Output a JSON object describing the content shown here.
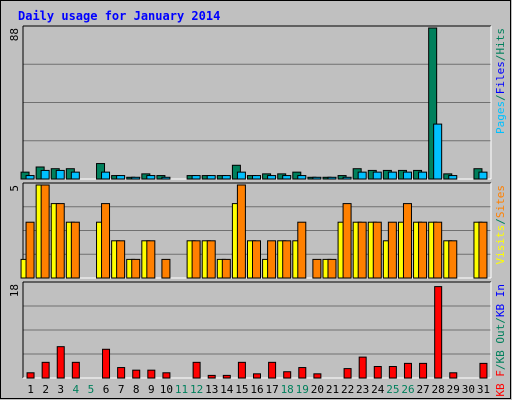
{
  "colors": {
    "background": "#c0c0c0",
    "plot_bg": "#c0c0c0",
    "grid": "#707070",
    "title": "#0000ff",
    "hits": "#00805c",
    "files": "#00c0ff",
    "pages": "#00c0ff",
    "visits": "#ffff00",
    "sites": "#ff8000",
    "kbin": "#0000ff",
    "kbout": "#00805c",
    "kbf": "#ff0000",
    "weekend_label": "#00805c",
    "weekday_label": "#000000",
    "separator": "#00805c"
  },
  "chart_data": {
    "type": "bar",
    "title": "Daily usage for January 2014",
    "categories": [
      "1",
      "2",
      "3",
      "4",
      "5",
      "6",
      "7",
      "8",
      "9",
      "10",
      "11",
      "12",
      "13",
      "14",
      "15",
      "16",
      "17",
      "18",
      "19",
      "20",
      "21",
      "22",
      "23",
      "24",
      "25",
      "26",
      "27",
      "28",
      "29",
      "30",
      "31"
    ],
    "weekend_days": [
      "4",
      "5",
      "11",
      "12",
      "18",
      "19",
      "25",
      "26"
    ],
    "panels": [
      {
        "name": "hits-files-pages",
        "ymax_label": "88",
        "ymax": 88,
        "legend": [
          {
            "text": "Pages",
            "color_key": "pages"
          },
          {
            "text": "/",
            "color_key": "separator"
          },
          {
            "text": "Files",
            "color_key": "kbin"
          },
          {
            "text": "/",
            "color_key": "separator"
          },
          {
            "text": "Hits",
            "color_key": "hits"
          }
        ],
        "series": [
          {
            "name": "Hits",
            "color_key": "hits",
            "values": [
              4,
              7,
              6,
              6,
              0,
              9,
              2,
              1,
              3,
              2,
              0,
              2,
              2,
              2,
              8,
              2,
              3,
              3,
              4,
              1,
              1,
              2,
              6,
              5,
              5,
              5,
              5,
              88,
              3,
              0,
              6
            ]
          },
          {
            "name": "Files",
            "color_key": "files",
            "values": [
              2,
              5,
              5,
              4,
              0,
              4,
              2,
              1,
              2,
              1,
              0,
              2,
              2,
              2,
              4,
              2,
              2,
              2,
              2,
              1,
              1,
              1,
              4,
              4,
              4,
              4,
              4,
              32,
              2,
              0,
              4
            ]
          }
        ]
      },
      {
        "name": "visits-sites",
        "ymax_label": "5",
        "ymax": 5,
        "legend": [
          {
            "text": "Visits",
            "color_key": "visits"
          },
          {
            "text": "/",
            "color_key": "separator"
          },
          {
            "text": "Sites",
            "color_key": "sites"
          }
        ],
        "series": [
          {
            "name": "Visits",
            "color_key": "visits",
            "values": [
              1,
              5,
              4,
              3,
              0,
              3,
              2,
              1,
              2,
              0,
              0,
              2,
              2,
              1,
              4,
              2,
              1,
              2,
              2,
              0,
              1,
              3,
              3,
              3,
              2,
              3,
              3,
              3,
              2,
              0,
              3
            ]
          },
          {
            "name": "Sites",
            "color_key": "sites",
            "values": [
              3,
              5,
              4,
              3,
              0,
              4,
              2,
              1,
              2,
              1,
              0,
              2,
              2,
              1,
              5,
              2,
              2,
              2,
              3,
              1,
              1,
              4,
              3,
              3,
              3,
              4,
              3,
              3,
              2,
              0,
              3
            ]
          }
        ]
      },
      {
        "name": "kbytes",
        "ymax_label": "18",
        "ymax": 18,
        "legend": [
          {
            "text": "KB F",
            "color_key": "kbf"
          },
          {
            "text": "/",
            "color_key": "separator"
          },
          {
            "text": "KB Out",
            "color_key": "kbout"
          },
          {
            "text": "/",
            "color_key": "separator"
          },
          {
            "text": "KB In",
            "color_key": "kbin"
          }
        ],
        "series": [
          {
            "name": "KB F",
            "color_key": "kbf",
            "values": [
              1,
              3,
              6,
              3,
              0,
              5.5,
              2,
              1.5,
              1.5,
              1,
              0,
              3,
              0.5,
              0.5,
              3,
              0.8,
              3,
              1.2,
              2,
              0.8,
              0,
              1.8,
              4,
              2.2,
              2.2,
              2.8,
              2.8,
              17.5,
              1,
              0,
              2.8
            ]
          }
        ]
      }
    ]
  }
}
